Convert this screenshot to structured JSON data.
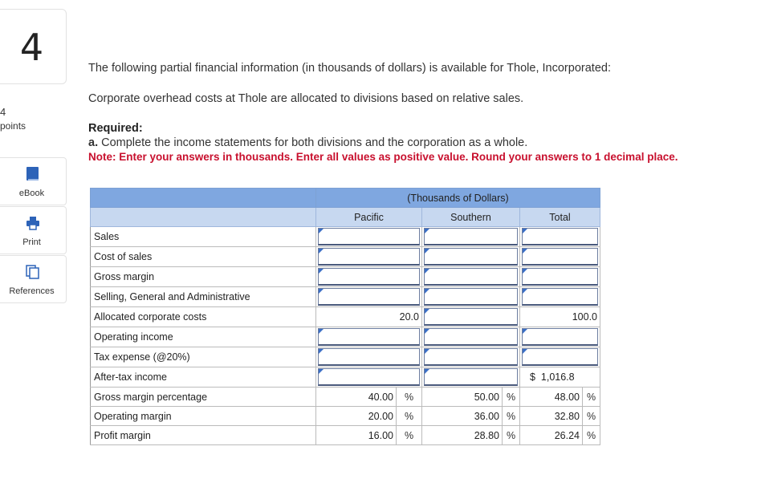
{
  "sidebar": {
    "question_number": "4",
    "points_value": "4",
    "points_label": "points",
    "items": [
      {
        "label": "eBook"
      },
      {
        "label": "Print"
      },
      {
        "label": "References"
      }
    ]
  },
  "content": {
    "intro": "The following partial financial information (in thousands of dollars) is available for Thole, Incorporated:",
    "overhead": "Corporate overhead costs at Thole are allocated to divisions based on relative sales.",
    "required_title": "Required:",
    "required_a_prefix": "a.",
    "required_a": " Complete the income statements for both divisions and the corporation as a whole.",
    "note": "Note: Enter your answers in thousands. Enter all values as positive value. Round your answers to 1 decimal place."
  },
  "table": {
    "group_header": "(Thousands of Dollars)",
    "col_pacific": "Pacific",
    "col_southern": "Southern",
    "col_total": "Total",
    "rows": {
      "sales": "Sales",
      "cost_of_sales": "Cost of sales",
      "gross_margin": "Gross margin",
      "sga": "Selling, General and Administrative",
      "allocated": "Allocated corporate costs",
      "operating_income": "Operating income",
      "tax": "Tax expense (@20%)",
      "after_tax": "After-tax income",
      "gm_pct": "Gross margin percentage",
      "op_margin": "Operating margin",
      "profit_margin": "Profit margin"
    },
    "values": {
      "allocated_pacific": "20.0",
      "allocated_total": "100.0",
      "after_tax_total": "$  1,016.8",
      "gm_pct_pacific": "40.00",
      "gm_pct_southern": "50.00",
      "gm_pct_total": "48.00",
      "op_margin_pacific": "20.00",
      "op_margin_southern": "36.00",
      "op_margin_total": "32.80",
      "profit_margin_pacific": "16.00",
      "profit_margin_southern": "28.80",
      "profit_margin_total": "26.24",
      "pct_sign": "%"
    }
  }
}
